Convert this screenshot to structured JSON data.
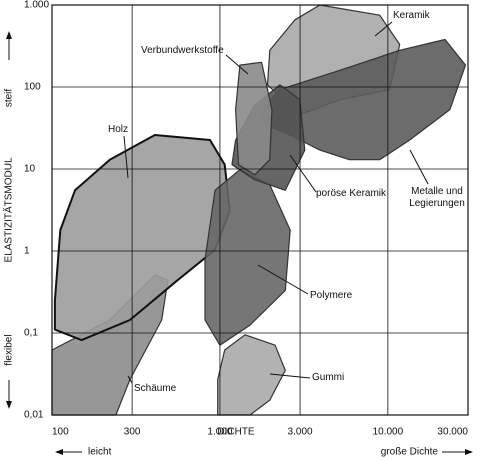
{
  "chart_data": {
    "type": "region",
    "x_label": "DICHTE",
    "y_label": "ELASTIZITÄTSMODUL",
    "x_direction_labels": [
      "leicht",
      "große Dichte"
    ],
    "y_direction_labels": [
      "steif",
      "flexibel"
    ],
    "xscale": "log",
    "yscale": "log",
    "grid": true,
    "xlim": [
      100,
      30000
    ],
    "ylim": [
      0.01,
      1000
    ],
    "xticks": [
      100,
      300,
      {
        "value": 1000,
        "label": "1.000"
      },
      {
        "value": 3000,
        "label": "3.000"
      },
      {
        "value": 10000,
        "label": "10.000"
      },
      {
        "value": 30000,
        "label": "30.000"
      }
    ],
    "yticks": [
      {
        "value": 0.01,
        "label": "0,01"
      },
      {
        "value": 0.1,
        "label": "0,1"
      },
      1,
      10,
      100,
      {
        "value": 1000,
        "label": "1.000"
      }
    ],
    "series": [
      {
        "name": "Schäume",
        "color": "#8c8c8c",
        "x": [
          100,
          221,
          410,
          490,
          450,
          291,
          240,
          100
        ],
        "y": [
          0.062,
          0.144,
          0.51,
          0.44,
          0.144,
          0.027,
          0.01,
          0.01
        ]
      },
      {
        "name": "Holz",
        "color": "#9c9c9c",
        "x": [
          104,
          112,
          137,
          221,
          410,
          873,
          1068,
          1145,
          935,
          560,
          291,
          150,
          104
        ],
        "y": [
          0.25,
          1.8,
          5.5,
          13,
          26,
          22.6,
          11.3,
          3.1,
          1.03,
          0.44,
          0.144,
          0.082,
          0.11
        ]
      },
      {
        "name": "Gummi",
        "color": "#aaaaaa",
        "x": [
          1068,
          1410,
          2130,
          2450,
          1980,
          1510,
          970,
          970
        ],
        "y": [
          0.062,
          0.095,
          0.071,
          0.035,
          0.0152,
          0.01,
          0.01,
          0.027
        ]
      },
      {
        "name": "Polymere",
        "color": "#676767",
        "x": [
          935,
          1315,
          1980,
          2620,
          2450,
          1510,
          1000,
          815,
          815
        ],
        "y": [
          5.5,
          9.8,
          6.4,
          1.8,
          0.33,
          0.125,
          0.071,
          0.144,
          0.78
        ]
      },
      {
        "name": "Keramik",
        "color": "#a8a8a8",
        "x": [
          1980,
          2800,
          3930,
          8940,
          11760,
          10270,
          5170,
          2990,
          1920
        ],
        "y": [
          280,
          660,
          1000,
          750,
          330,
          93,
          70,
          46,
          106
        ]
      },
      {
        "name": "Metalle und Legierungen",
        "color": "#5c5c5c",
        "x": [
          1770,
          2275,
          5170,
          11760,
          21900,
          29000,
          23400,
          13480,
          8940,
          5900,
          3930,
          2620,
          1840
        ],
        "y": [
          53,
          93,
          160,
          280,
          380,
          185,
          53,
          22.6,
          13,
          13,
          17,
          26,
          35
        ]
      },
      {
        "name": "poröse Keramik",
        "color": "#545454",
        "x": [
          1240,
          1610,
          2275,
          2990,
          3200,
          2450,
          1610,
          1180
        ],
        "y": [
          22.6,
          60,
          106,
          70,
          17,
          5.5,
          7.4,
          11.3
        ]
      },
      {
        "name": "Verbundwerkstoffe",
        "color": "#8a8a8a",
        "x": [
          1315,
          1770,
          2040,
          1980,
          1610,
          1290,
          1240
        ],
        "y": [
          185,
          200,
          53,
          13,
          8.5,
          11.3,
          53
        ]
      }
    ]
  }
}
